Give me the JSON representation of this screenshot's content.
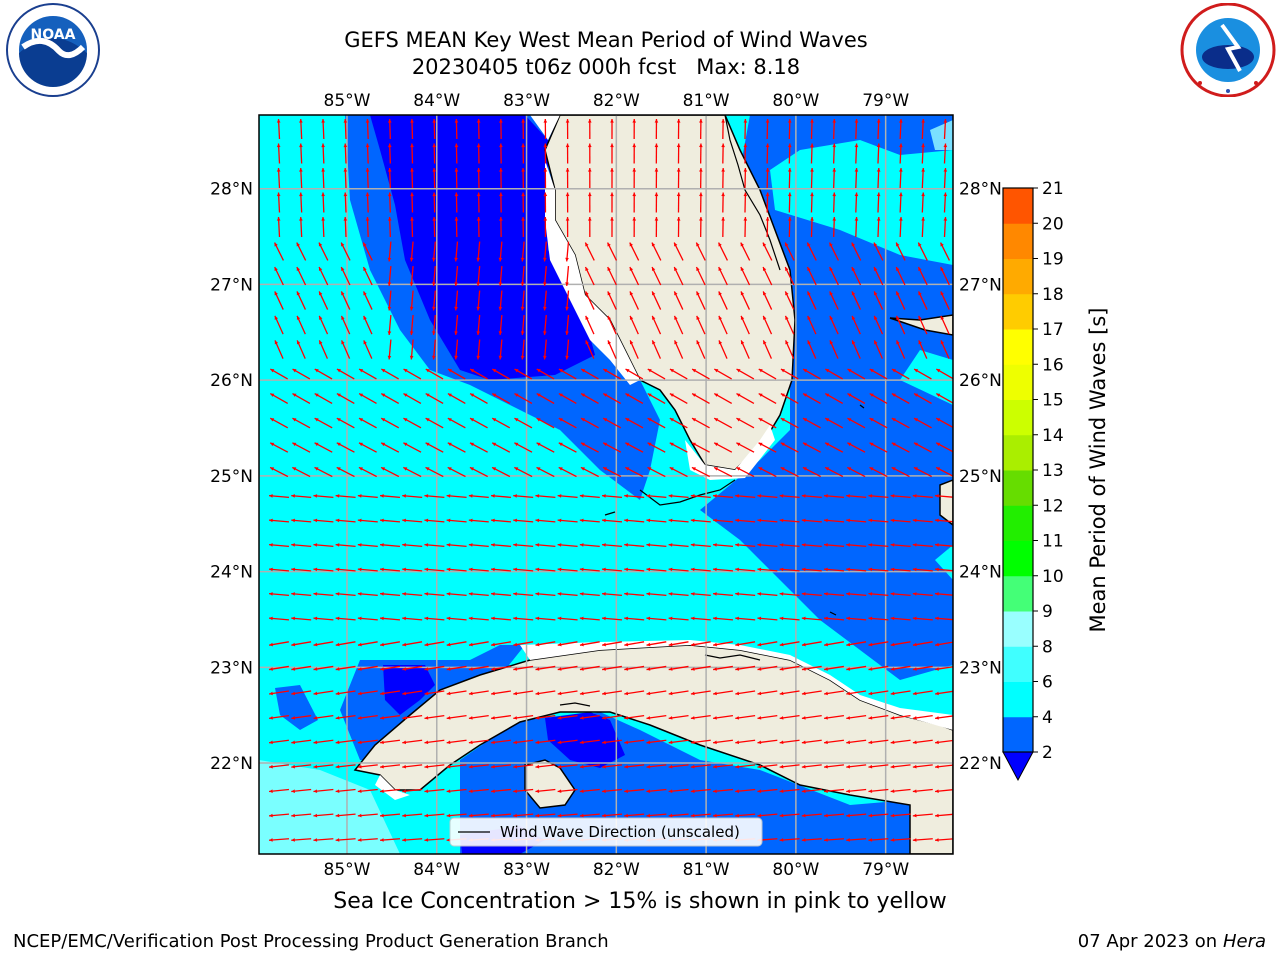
{
  "header": {
    "title_line1": "GEFS MEAN Key West Mean Period of Wind Waves",
    "title_line2": "20230405 t06z 000h fcst   Max: 8.18"
  },
  "logos": {
    "left": {
      "name": "NOAA",
      "text": "NOAA",
      "ring_text": "NATIONAL OCEANIC AND ATMOSPHERIC ADMINISTRATION · U.S. DEPARTMENT OF COMMERCE"
    },
    "right": {
      "name": "National Weather Service",
      "ring_text": "NATIONAL WEATHER SERVICE"
    }
  },
  "map": {
    "lon_labels": [
      "85°W",
      "84°W",
      "83°W",
      "82°W",
      "81°W",
      "80°W",
      "79°W"
    ],
    "lon_values": [
      -85,
      -84,
      -83,
      -82,
      -81,
      -80,
      -79
    ],
    "lat_labels": [
      "28°N",
      "27°N",
      "26°N",
      "25°N",
      "24°N",
      "23°N",
      "22°N"
    ],
    "lat_values": [
      28,
      27,
      26,
      25,
      24,
      23,
      22
    ],
    "extent": {
      "lon_min": -85.98,
      "lon_max": -78.25,
      "lat_min": 21.05,
      "lat_max": 28.77
    },
    "legend_label": "Wind Wave Direction (unscaled)",
    "arrow_color": "#ff0000",
    "land_color": "#efedde",
    "grid_color": "#b0b0b0"
  },
  "colorbar": {
    "label": "Mean Period of Wind Waves [s]",
    "ticks": [
      "2",
      "4",
      "6",
      "8",
      "9",
      "10",
      "11",
      "12",
      "13",
      "14",
      "15",
      "16",
      "17",
      "18",
      "19",
      "20",
      "21"
    ],
    "colors": [
      "#0066ff",
      "#00ffff",
      "#40ffff",
      "#99ffff",
      "#44ff77",
      "#00ff00",
      "#22ee00",
      "#66dd00",
      "#aaee00",
      "#ccff00",
      "#eeff00",
      "#ffff00",
      "#ffcc00",
      "#ffaa00",
      "#ff8800",
      "#ff5500",
      "#ff2200",
      "#ff0000"
    ],
    "under_color": "#0000ff"
  },
  "footer": {
    "note": "Sea Ice Concentration > 15% is shown in pink to yellow",
    "left": "NCEP/EMC/Verification Post Processing Product Generation Branch",
    "right_date": "07 Apr 2023 on ",
    "right_machine": "Hera"
  }
}
